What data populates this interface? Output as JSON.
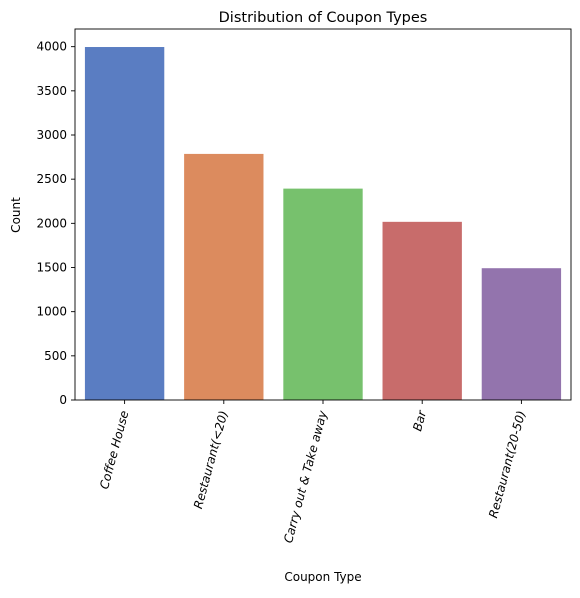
{
  "chart_data": {
    "type": "bar",
    "title": "Distribution of Coupon Types",
    "xlabel": "Coupon Type",
    "ylabel": "Count",
    "categories": [
      "Coffee House",
      "Restaurant(<20)",
      "Carry out & Take away",
      "Bar",
      "Restaurant(20-50)"
    ],
    "values": [
      3996,
      2786,
      2393,
      2017,
      1492
    ],
    "colors": [
      "#5a7dc2",
      "#dc8b5e",
      "#77c16d",
      "#c86c6b",
      "#9374ad"
    ],
    "ylim": [
      0,
      4200
    ],
    "yticks": [
      0,
      500,
      1000,
      1500,
      2000,
      2500,
      3000,
      3500,
      4000
    ],
    "xtick_rotation_deg": -75,
    "grid": false,
    "legend": "none"
  }
}
